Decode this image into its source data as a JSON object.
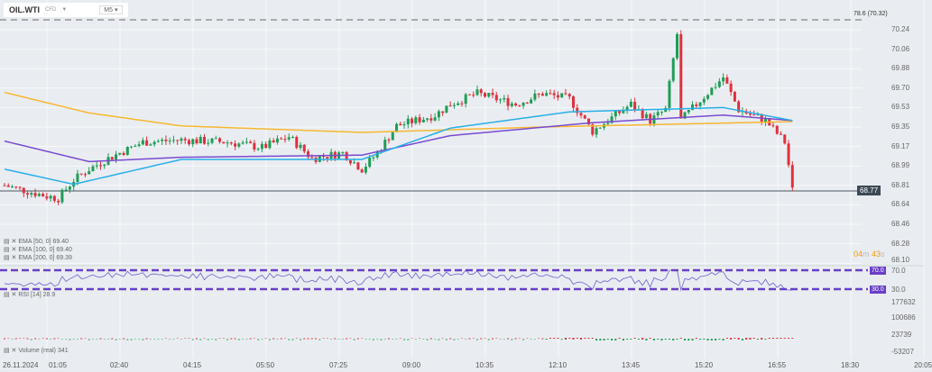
{
  "header": {
    "symbol": "OIL.WTI",
    "type": "CFD",
    "timeframe": "M5"
  },
  "level_label": "78.6 (70.32)",
  "price_axis": [
    "70.24",
    "70.06",
    "69.88",
    "69.70",
    "69.53",
    "69.35",
    "69.17",
    "68.99",
    "68.81",
    "68.64",
    "68.46",
    "68.28",
    "68.10"
  ],
  "current_price": "68.77",
  "countdown": {
    "min": "04",
    "m": "m",
    "sec": "43",
    "s": "s"
  },
  "indicators": {
    "ema50": "EMA [50, 0] 69.40",
    "ema100": "EMA [100, 0] 69.40",
    "ema200": "EMA [200, 0] 69.39",
    "rsi": "RSI [14] 28.9",
    "volume": "Volume (real) 341"
  },
  "rsi_axis": {
    "upper": "70.0",
    "lower": "30.0"
  },
  "volume_axis": [
    "177632",
    "100686",
    "23739",
    "-53207"
  ],
  "time_axis": [
    "26.11.2024",
    "01:05",
    "02:40",
    "04:15",
    "05:50",
    "07:25",
    "09:00",
    "10:35",
    "12:10",
    "13:45",
    "15:20",
    "16:55",
    "18:30",
    "20:05"
  ],
  "colors": {
    "up": "#1f9d55",
    "down": "#e0303c",
    "ema50": "#29aee8",
    "ema100": "#7a4ad0",
    "ema200": "#f7b731",
    "rsi": "#6b5fd0"
  },
  "chart_data": {
    "type": "candlestick",
    "candles": 206,
    "price_anchors": [
      [
        0,
        68.8
      ],
      [
        11,
        68.7
      ],
      [
        14,
        68.68
      ],
      [
        18,
        68.85
      ],
      [
        22,
        68.95
      ],
      [
        27,
        69.05
      ],
      [
        36,
        69.2
      ],
      [
        46,
        69.22
      ],
      [
        58,
        69.2
      ],
      [
        67,
        69.15
      ],
      [
        74,
        69.25
      ],
      [
        80,
        69.05
      ],
      [
        88,
        69.1
      ],
      [
        93,
        68.95
      ],
      [
        97,
        69.1
      ],
      [
        102,
        69.35
      ],
      [
        112,
        69.45
      ],
      [
        116,
        69.55
      ],
      [
        123,
        69.65
      ],
      [
        133,
        69.55
      ],
      [
        140,
        69.65
      ],
      [
        147,
        69.6
      ],
      [
        153,
        69.3
      ],
      [
        159,
        69.45
      ],
      [
        163,
        69.55
      ],
      [
        168,
        69.4
      ],
      [
        172,
        69.5
      ],
      [
        175,
        70.2
      ],
      [
        176,
        69.4
      ],
      [
        180,
        69.55
      ],
      [
        187,
        69.8
      ],
      [
        191,
        69.5
      ],
      [
        198,
        69.4
      ],
      [
        203,
        69.2
      ],
      [
        205,
        68.78
      ]
    ],
    "ema50": [
      [
        0,
        68.95
      ],
      [
        18,
        68.81
      ],
      [
        46,
        69.04
      ],
      [
        93,
        69.04
      ],
      [
        116,
        69.33
      ],
      [
        147,
        69.48
      ],
      [
        187,
        69.52
      ],
      [
        205,
        69.4
      ]
    ],
    "ema100": [
      [
        0,
        69.21
      ],
      [
        22,
        69.02
      ],
      [
        46,
        69.06
      ],
      [
        93,
        69.08
      ],
      [
        116,
        69.26
      ],
      [
        153,
        69.38
      ],
      [
        187,
        69.45
      ],
      [
        205,
        69.4
      ]
    ],
    "ema200": [
      [
        0,
        69.66
      ],
      [
        22,
        69.47
      ],
      [
        46,
        69.35
      ],
      [
        93,
        69.29
      ],
      [
        140,
        69.34
      ],
      [
        205,
        69.39
      ]
    ]
  }
}
